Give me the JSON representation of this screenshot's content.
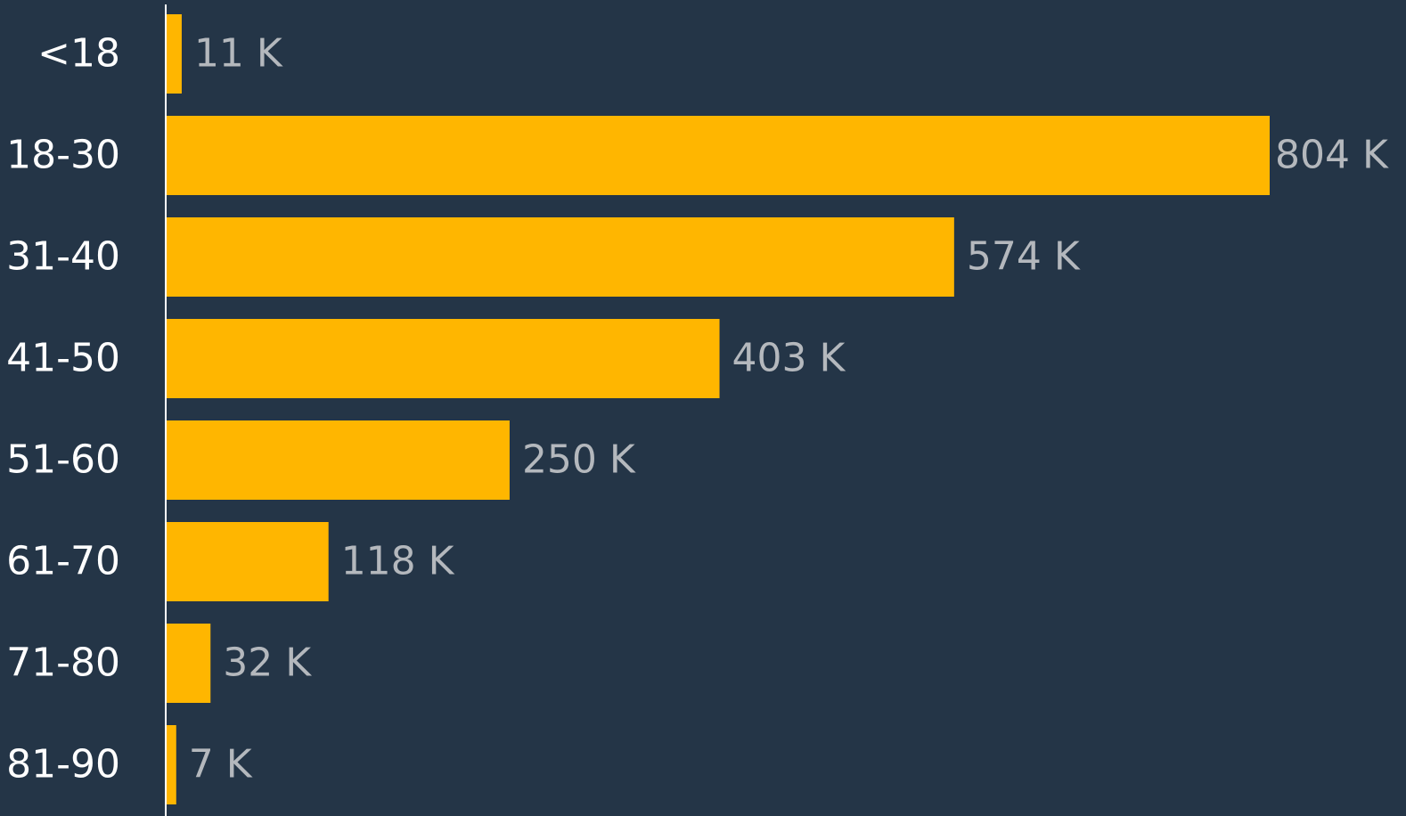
{
  "chart_data": {
    "type": "bar",
    "orientation": "horizontal",
    "categories": [
      "<18",
      "18-30",
      "31-40",
      "41-50",
      "51-60",
      "61-70",
      "71-80",
      "81-90"
    ],
    "values": [
      11,
      804,
      574,
      403,
      250,
      118,
      32,
      7
    ],
    "value_labels": [
      "11 K",
      "804 K",
      "574 K",
      "403 K",
      "250 K",
      "118 K",
      "32 K",
      "7 K"
    ],
    "color": "#ffb600"
  }
}
